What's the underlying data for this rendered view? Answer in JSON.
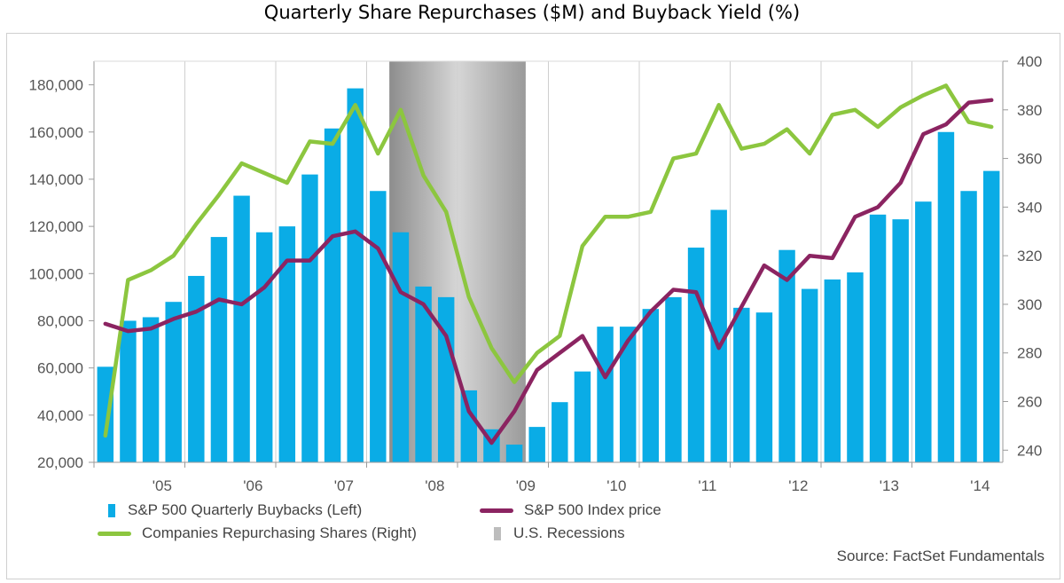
{
  "title": "Quarterly Share Repurchases ($M) and Buyback Yield (%)",
  "source": "Source: FactSet Fundamentals",
  "legend": {
    "buybacks": "S&P 500 Quarterly Buybacks (Left)",
    "index": "S&P 500 Index price",
    "companies": "Companies Repurchasing Shares (Right)",
    "recession": "U.S. Recessions"
  },
  "colors": {
    "buybacks": "#0aace6",
    "index": "#8b2461",
    "companies": "#8cc63f",
    "recession": "#a9a9a9"
  },
  "chart_data": {
    "type": "bar",
    "x_tick_labels": [
      "'05",
      "'06",
      "'07",
      "'08",
      "'09",
      "'10",
      "'11",
      "'12",
      "'13",
      "'14"
    ],
    "left_axis": {
      "ylim": [
        20000,
        190000
      ],
      "ticks": [
        "20,000",
        "40,000",
        "60,000",
        "80,000",
        "100,000",
        "120,000",
        "140,000",
        "160,000",
        "180,000"
      ]
    },
    "right_axis": {
      "ylim": [
        235,
        400
      ],
      "ticks": [
        "240",
        "260",
        "280",
        "300",
        "320",
        "340",
        "360",
        "380",
        "400"
      ]
    },
    "recession": {
      "start_quarter_index": 13,
      "end_quarter_index": 19
    },
    "series": [
      {
        "name": "S&P 500 Quarterly Buybacks (Left)",
        "type": "bar",
        "axis": "left",
        "values": [
          60500,
          80000,
          81500,
          88000,
          99000,
          115500,
          133000,
          117500,
          120000,
          142000,
          161500,
          178500,
          135000,
          117500,
          94500,
          90000,
          50500,
          34000,
          27500,
          35000,
          45500,
          58500,
          77500,
          77500,
          85000,
          90000,
          111000,
          127000,
          85500,
          83500,
          110000,
          93500,
          97500,
          100500,
          125000,
          123000,
          130500,
          160000,
          135000,
          143500
        ]
      },
      {
        "name": "S&P 500 Index price",
        "type": "line",
        "axis": "right",
        "values": [
          292,
          289,
          290,
          294,
          297,
          302,
          300,
          307,
          318,
          318,
          328,
          330,
          323,
          305,
          300,
          287,
          256,
          243,
          256,
          273,
          280,
          287,
          270,
          285,
          297,
          306,
          305,
          282,
          299,
          316,
          310,
          320,
          319,
          336,
          340,
          350,
          370,
          374,
          383,
          384
        ]
      },
      {
        "name": "Companies Repurchasing Shares (Right)",
        "type": "line",
        "axis": "right",
        "values": [
          246,
          310,
          314,
          320,
          333,
          345,
          358,
          354,
          350,
          367,
          366,
          382,
          362,
          380,
          353,
          338,
          303,
          282,
          268,
          280,
          287,
          324,
          336,
          336,
          338,
          360,
          362,
          382,
          364,
          366,
          372,
          362,
          378,
          380,
          373,
          381,
          386,
          390,
          375,
          373
        ]
      }
    ]
  }
}
